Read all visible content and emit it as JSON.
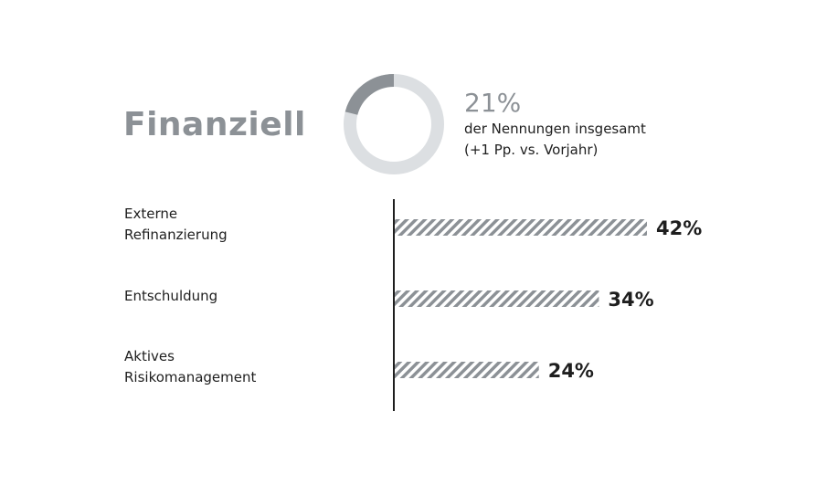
{
  "title": "Finanziell",
  "share": {
    "value": 21,
    "percent_label": "21%",
    "line1": "der Nennungen insgesamt",
    "line2": "(+1 Pp. vs. Vorjahr)"
  },
  "colors": {
    "title": "#8c9196",
    "donut_fill": "#8c9196",
    "donut_track": "#dcdfe2",
    "bar_stripe": "#8c9196",
    "axis": "#1e1e1e",
    "text": "#1e1e1e"
  },
  "chart_data": {
    "type": "bar",
    "orientation": "horizontal",
    "categories": [
      [
        "Externe",
        "Refinanzierung"
      ],
      [
        "Entschuldung"
      ],
      [
        "Aktives",
        "Risikomanagement"
      ]
    ],
    "values": [
      42,
      34,
      24
    ],
    "value_labels": [
      "42%",
      "34%",
      "24%"
    ],
    "xlim": [
      0,
      50
    ],
    "grid": false,
    "legend": "none"
  }
}
